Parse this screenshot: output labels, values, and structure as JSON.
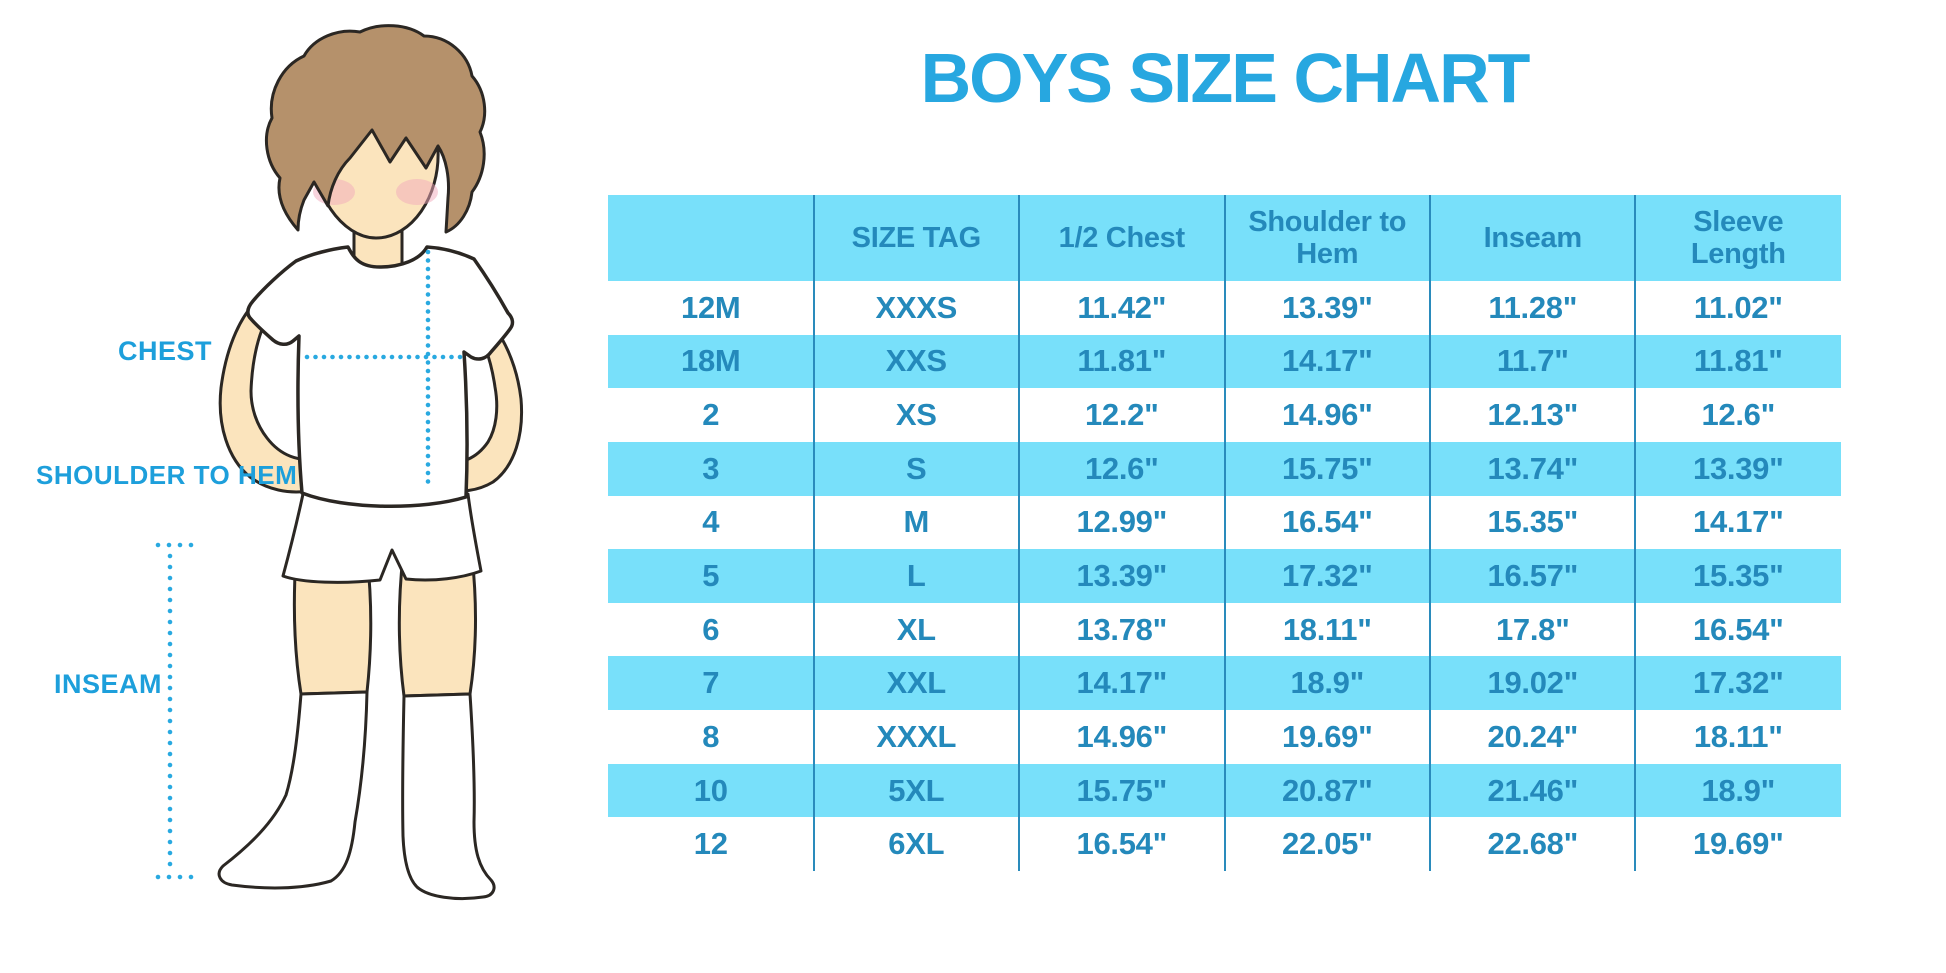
{
  "title": "BOYS SIZE CHART",
  "colors": {
    "accent_blue": "#27A7E0",
    "table_text_blue": "#2489BB",
    "row_cyan": "#78E0FA",
    "skin": "#FBE4BD",
    "hair_brown": "#B5916B",
    "sock_white": "#FFFFFF"
  },
  "diagram": {
    "labels": {
      "chest": "CHEST",
      "shoulder_to_hem": "SHOULDER TO HEM",
      "inseam": "INSEAM"
    }
  },
  "chart_data": {
    "type": "table",
    "title": "BOYS SIZE CHART",
    "columns": [
      "",
      "SIZE TAG",
      "1/2 Chest",
      "Shoulder to Hem",
      "Inseam",
      "Sleeve Length"
    ],
    "rows": [
      [
        "12M",
        "XXXS",
        "11.42\"",
        "13.39\"",
        "11.28\"",
        "11.02\""
      ],
      [
        "18M",
        "XXS",
        "11.81\"",
        "14.17\"",
        "11.7\"",
        "11.81\""
      ],
      [
        "2",
        "XS",
        "12.2\"",
        "14.96\"",
        "12.13\"",
        "12.6\""
      ],
      [
        "3",
        "S",
        "12.6\"",
        "15.75\"",
        "13.74\"",
        "13.39\""
      ],
      [
        "4",
        "M",
        "12.99\"",
        "16.54\"",
        "15.35\"",
        "14.17\""
      ],
      [
        "5",
        "L",
        "13.39\"",
        "17.32\"",
        "16.57\"",
        "15.35\""
      ],
      [
        "6",
        "XL",
        "13.78\"",
        "18.11\"",
        "17.8\"",
        "16.54\""
      ],
      [
        "7",
        "XXL",
        "14.17\"",
        "18.9\"",
        "19.02\"",
        "17.32\""
      ],
      [
        "8",
        "XXXL",
        "14.96\"",
        "19.69\"",
        "20.24\"",
        "18.11\""
      ],
      [
        "10",
        "5XL",
        "15.75\"",
        "20.87\"",
        "21.46\"",
        "18.9\""
      ],
      [
        "12",
        "6XL",
        "16.54\"",
        "22.05\"",
        "22.68\"",
        "19.69\""
      ]
    ],
    "row_striping": "alternate rows cyan starting with second data row",
    "legend_position": "none",
    "grid": "vertical column dividers only"
  }
}
